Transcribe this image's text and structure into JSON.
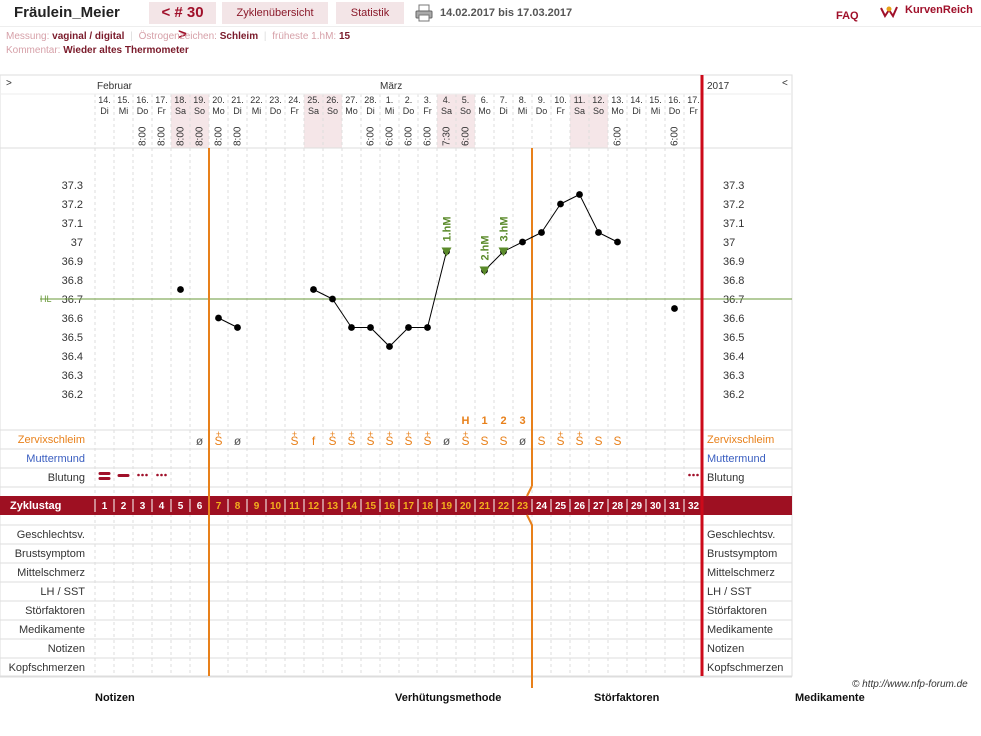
{
  "header": {
    "user": "Fräulein_Meier",
    "cycle": "< # 30 >",
    "tabs": [
      "Zyklenübersicht",
      "Statistik"
    ],
    "date_range": "14.02.2017 bis 17.03.2017",
    "faq": "FAQ",
    "brand": "KurvenReich"
  },
  "meta": {
    "messung_key": "Messung:",
    "messung_val": "vaginal / digital",
    "oestrogen_key": "Östrogenzeichen:",
    "oestrogen_val": "Schleim",
    "fhm_key": "früheste 1.hM:",
    "fhm_val": "15",
    "kommentar_key": "Kommentar:",
    "kommentar_val": "Wieder altes Thermometer"
  },
  "chart_nav": {
    "left": ">",
    "right": "<",
    "year": "2017"
  },
  "months": [
    "Februar",
    "März"
  ],
  "days": [
    {
      "d": "14.",
      "w": "Di",
      "t": "",
      "we": false,
      "z": "1",
      "cs": "",
      "bl": "heavy"
    },
    {
      "d": "15.",
      "w": "Mi",
      "t": "",
      "we": false,
      "z": "2",
      "cs": "",
      "bl": "medium"
    },
    {
      "d": "16.",
      "w": "Do",
      "t": "8:00",
      "we": false,
      "z": "3",
      "cs": "",
      "bl": "light"
    },
    {
      "d": "17.",
      "w": "Fr",
      "t": "8:00",
      "we": false,
      "z": "4",
      "cs": "",
      "bl": "light"
    },
    {
      "d": "18.",
      "w": "Sa",
      "t": "8:00",
      "we": true,
      "z": "5",
      "cs": "",
      "bl": ""
    },
    {
      "d": "19.",
      "w": "So",
      "t": "8:00",
      "we": true,
      "z": "6",
      "cs": "ø",
      "bl": ""
    },
    {
      "d": "20.",
      "w": "Mo",
      "t": "8:00",
      "we": false,
      "z": "7",
      "cs": "S̈",
      "bl": ""
    },
    {
      "d": "21.",
      "w": "Di",
      "t": "8:00",
      "we": false,
      "z": "8",
      "cs": "ø",
      "bl": ""
    },
    {
      "d": "22.",
      "w": "Mi",
      "t": "",
      "we": false,
      "z": "9",
      "cs": "",
      "bl": ""
    },
    {
      "d": "23.",
      "w": "Do",
      "t": "",
      "we": false,
      "z": "10",
      "cs": "",
      "bl": ""
    },
    {
      "d": "24.",
      "w": "Fr",
      "t": "",
      "we": false,
      "z": "11",
      "cs": "S̈",
      "bl": ""
    },
    {
      "d": "25.",
      "w": "Sa",
      "t": "",
      "we": true,
      "z": "12",
      "cs": "f",
      "bl": ""
    },
    {
      "d": "26.",
      "w": "So",
      "t": "",
      "we": true,
      "z": "13",
      "cs": "S̈",
      "bl": ""
    },
    {
      "d": "27.",
      "w": "Mo",
      "t": "",
      "we": false,
      "z": "14",
      "cs": "S̈",
      "bl": ""
    },
    {
      "d": "28.",
      "w": "Di",
      "t": "6:00",
      "we": false,
      "z": "15",
      "cs": "S̈",
      "bl": ""
    },
    {
      "d": "1.",
      "w": "Mi",
      "t": "6:00",
      "we": false,
      "z": "16",
      "cs": "S̈",
      "bl": ""
    },
    {
      "d": "2.",
      "w": "Do",
      "t": "6:00",
      "we": false,
      "z": "17",
      "cs": "S̈",
      "bl": ""
    },
    {
      "d": "3.",
      "w": "Fr",
      "t": "6:00",
      "we": false,
      "z": "18",
      "cs": "S̈",
      "bl": ""
    },
    {
      "d": "4.",
      "w": "Sa",
      "t": "7:30",
      "we": true,
      "z": "19",
      "cs": "ø",
      "bl": ""
    },
    {
      "d": "5.",
      "w": "So",
      "t": "6:00",
      "we": true,
      "z": "20",
      "cs": "S̈",
      "bl": ""
    },
    {
      "d": "6.",
      "w": "Mo",
      "t": "",
      "we": false,
      "z": "21",
      "cs": "S",
      "bl": ""
    },
    {
      "d": "7.",
      "w": "Di",
      "t": "",
      "we": false,
      "z": "22",
      "cs": "S",
      "bl": ""
    },
    {
      "d": "8.",
      "w": "Mi",
      "t": "",
      "we": false,
      "z": "23",
      "cs": "ø",
      "bl": ""
    },
    {
      "d": "9.",
      "w": "Do",
      "t": "",
      "we": false,
      "z": "24",
      "cs": "S",
      "bl": ""
    },
    {
      "d": "10.",
      "w": "Fr",
      "t": "",
      "we": false,
      "z": "25",
      "cs": "S̈",
      "bl": ""
    },
    {
      "d": "11.",
      "w": "Sa",
      "t": "",
      "we": true,
      "z": "26",
      "cs": "S̈",
      "bl": ""
    },
    {
      "d": "12.",
      "w": "So",
      "t": "",
      "we": true,
      "z": "27",
      "cs": "S",
      "bl": ""
    },
    {
      "d": "13.",
      "w": "Mo",
      "t": "6:00",
      "we": false,
      "z": "28",
      "cs": "S",
      "bl": ""
    },
    {
      "d": "14.",
      "w": "Di",
      "t": "",
      "we": false,
      "z": "29",
      "cs": "",
      "bl": ""
    },
    {
      "d": "15.",
      "w": "Mi",
      "t": "",
      "we": false,
      "z": "30",
      "cs": "",
      "bl": ""
    },
    {
      "d": "16.",
      "w": "Do",
      "t": "6:00",
      "we": false,
      "z": "31",
      "cs": "",
      "bl": ""
    },
    {
      "d": "17.",
      "w": "Fr",
      "t": "",
      "we": false,
      "z": "32",
      "cs": "",
      "bl": "light"
    }
  ],
  "markers": {
    "H": 19,
    "1": 20,
    "2": 21,
    "3": 22
  },
  "hm_labels": [
    {
      "day": 18,
      "text": "1.hM",
      "temp": 36.95
    },
    {
      "day": 20,
      "text": "2.hM",
      "temp": 36.85
    },
    {
      "day": 21,
      "text": "3.hM",
      "temp": 36.95
    }
  ],
  "hl_label": "HL",
  "chart_data": {
    "type": "line",
    "y_ticks": [
      "37.3",
      "37.2",
      "37.1",
      "37",
      "36.9",
      "36.8",
      "36.7",
      "36.6",
      "36.5",
      "36.4",
      "36.3",
      "36.2"
    ],
    "ylim": [
      36.1,
      37.4
    ],
    "hl": 36.7,
    "temps": [
      null,
      null,
      null,
      null,
      36.75,
      null,
      36.6,
      36.55,
      null,
      null,
      null,
      36.75,
      36.7,
      36.55,
      36.55,
      36.45,
      36.55,
      36.55,
      36.95,
      null,
      36.85,
      36.95,
      37.0,
      37.05,
      37.2,
      37.25,
      37.05,
      37.0,
      null,
      null,
      36.65,
      null
    ],
    "segments_broken_after": [
      4,
      7,
      10
    ],
    "ovulation_lines_after_cycle_day": [
      6,
      23
    ]
  },
  "rows_top": [
    "Zervixschleim",
    "Muttermund",
    "Blutung"
  ],
  "cycle_label": "Zyklustag",
  "rows_bottom": [
    "Geschlechtsv.",
    "Brustsymptom",
    "Mittelschmerz",
    "LH / SST",
    "Störfaktoren",
    "Medikamente",
    "Notizen",
    "Kopfschmerzen"
  ],
  "footer": {
    "copyright": "© http://www.nfp-forum.de",
    "cols": [
      "Notizen",
      "Verhütungsmethode",
      "Störfaktoren",
      "Medikamente"
    ]
  },
  "colors": {
    "brand": "#a0102a",
    "orange": "#e8801a",
    "green": "#5a8a2a",
    "hl": "#6a9a3a",
    "zyklus_bg": "#9e1022",
    "weekend": "#f5e6e8"
  }
}
